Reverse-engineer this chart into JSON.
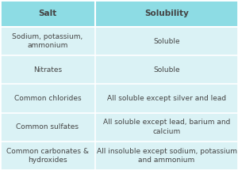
{
  "header": [
    "Salt",
    "Solubility"
  ],
  "rows": [
    [
      "Sodium, potassium,\nammonium",
      "Soluble"
    ],
    [
      "Nitrates",
      "Soluble"
    ],
    [
      "Common chlorides",
      "All soluble except silver and lead"
    ],
    [
      "Common sulfates",
      "All soluble except lead, barium and\ncalcium"
    ],
    [
      "Common carbonates &\nhydroxides",
      "All insoluble except sodium, potassium\nand ammonium"
    ]
  ],
  "header_bg": "#8ddce4",
  "row_bg": "#daf2f5",
  "divider_color": "#ffffff",
  "text_color": "#444444",
  "header_fontsize": 7.5,
  "row_fontsize": 6.5,
  "col_split": 0.4
}
